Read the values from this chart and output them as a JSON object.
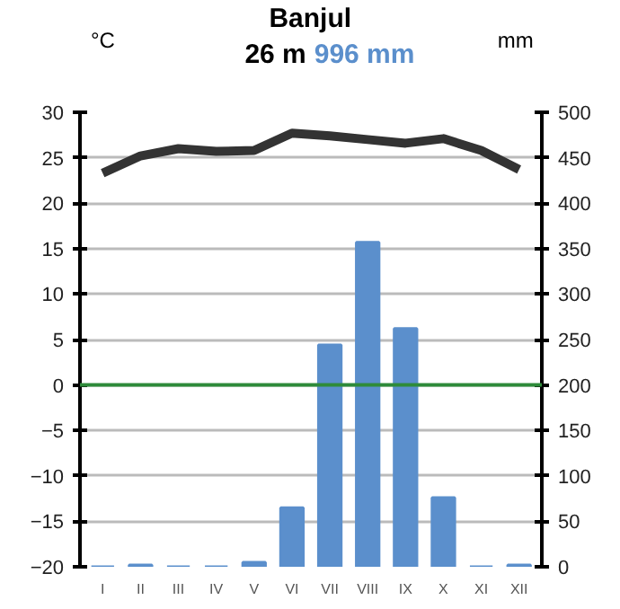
{
  "chart_data": {
    "type": "bar",
    "title": "Banjul",
    "subtitle": "26 m",
    "annotations": [
      "996 mm"
    ],
    "categories": [
      "I",
      "II",
      "III",
      "IV",
      "V",
      "VI",
      "VII",
      "VIII",
      "IX",
      "X",
      "XI",
      "XII"
    ],
    "series": [
      {
        "axis": "y2",
        "color": "#5b8fcc",
        "values": [
          0,
          2,
          0,
          0,
          5,
          65,
          244,
          357,
          262,
          76,
          0,
          2
        ]
      },
      {
        "type": "line",
        "axis": "y",
        "color": "#333333",
        "values": [
          23.3,
          25.2,
          26.0,
          25.7,
          25.8,
          27.7,
          27.4,
          27.0,
          26.6,
          27.1,
          25.8,
          23.7
        ]
      }
    ],
    "ylabel": "°C",
    "y2label": "mm",
    "ylim": [
      -20,
      30
    ],
    "yticks": [
      -20,
      -15,
      -10,
      -5,
      0,
      5,
      10,
      15,
      20,
      25,
      30
    ],
    "y2lim": [
      0,
      500
    ],
    "y2ticks": [
      0,
      50,
      100,
      150,
      200,
      250,
      300,
      350,
      400,
      450,
      500
    ],
    "ref_lines": [
      {
        "axis": "y",
        "value": 0,
        "color": "#2e8b3a"
      }
    ],
    "grid": "y",
    "marker": "none",
    "line_style": "solid"
  }
}
